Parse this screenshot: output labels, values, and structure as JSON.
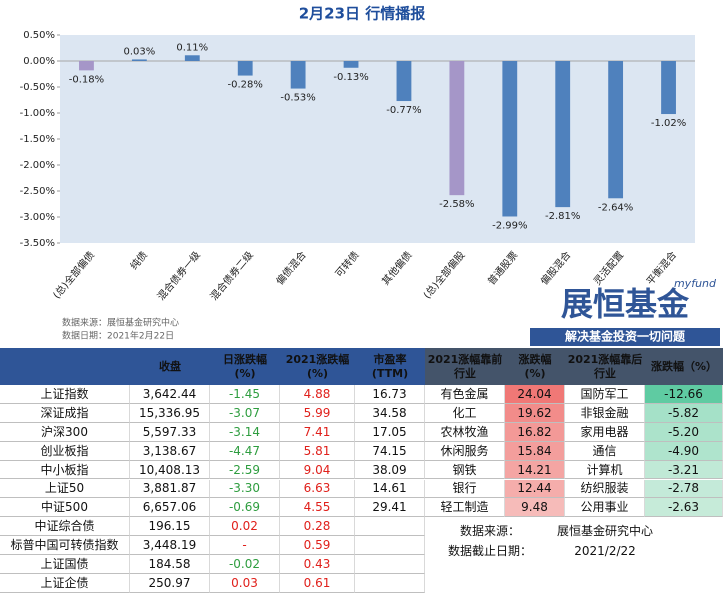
{
  "chart_data": {
    "type": "bar",
    "title": "2月23日  行情播报",
    "categories": [
      "(总)全部偏债",
      "纯债",
      "混合债券一级",
      "混合债券二级",
      "偏债混合",
      "可转债",
      "其他偏债",
      "(总)全部偏股",
      "普通股票",
      "偏股混合",
      "灵活配置",
      "平衡混合"
    ],
    "values": [
      -0.18,
      0.03,
      0.11,
      -0.28,
      -0.53,
      -0.13,
      -0.77,
      -2.58,
      -2.99,
      -2.81,
      -2.64,
      -1.02
    ],
    "value_labels": [
      "-0.18%",
      "0.03%",
      "0.11%",
      "-0.28%",
      "-0.53%",
      "-0.13%",
      "-0.77%",
      "-2.58%",
      "-2.99%",
      "-2.81%",
      "-2.64%",
      "-1.02%"
    ],
    "colors": [
      "#a596c8",
      "#4f81bd",
      "#4f81bd",
      "#4f81bd",
      "#4f81bd",
      "#4f81bd",
      "#4f81bd",
      "#a596c8",
      "#4f81bd",
      "#4f81bd",
      "#4f81bd",
      "#4f81bd"
    ],
    "ylim": [
      -3.5,
      0.5
    ],
    "yticks": [
      {
        "value": 0.5,
        "label": "0.50%"
      },
      {
        "value": 0,
        "label": "0.00%"
      },
      {
        "value": -0.5,
        "label": "-0.50%"
      },
      {
        "value": -1,
        "label": "-1.00%"
      },
      {
        "value": -1.5,
        "label": "-1.50%"
      },
      {
        "value": -2,
        "label": "-2.00%"
      },
      {
        "value": -2.5,
        "label": "-2.50%"
      },
      {
        "value": -3,
        "label": "-3.00%"
      },
      {
        "value": -3.5,
        "label": "-3.50%"
      }
    ]
  },
  "chart_notes": [
    "数据来源：展恒基金研究中心",
    "数据日期：2021年2月22日"
  ],
  "logo": {
    "brand": "myfund",
    "name": "展恒基金",
    "slogan": "解决基金投资一切问题"
  },
  "index_table": {
    "header": [
      [
        "收盘"
      ],
      [
        "日涨跌幅",
        "(%)"
      ],
      [
        "2021涨跌幅",
        "(%)"
      ],
      [
        "市盈率",
        "(TTM)"
      ]
    ],
    "rows": [
      [
        "上证指数",
        "3,642.44",
        "-1.45",
        "4.88",
        "16.73"
      ],
      [
        "深证成指",
        "15,336.95",
        "-3.07",
        "5.99",
        "34.58"
      ],
      [
        "沪深300",
        "5,597.33",
        "-3.14",
        "7.41",
        "17.05"
      ],
      [
        "创业板指",
        "3,138.67",
        "-4.47",
        "5.81",
        "74.15"
      ],
      [
        "中小板指",
        "10,408.13",
        "-2.59",
        "9.04",
        "38.09"
      ],
      [
        "上证50",
        "3,881.87",
        "-3.30",
        "6.63",
        "14.61"
      ],
      [
        "中证500",
        "6,657.06",
        "-0.69",
        "4.55",
        "29.41"
      ],
      [
        "中证综合债",
        "196.15",
        "0.02",
        "0.28"
      ],
      [
        "标普中国可转债指数",
        "3,448.19",
        "-",
        "0.59"
      ],
      [
        "上证国债",
        "184.58",
        "-0.02",
        "0.43"
      ],
      [
        "上证企债",
        "250.97",
        "0.03",
        "0.61"
      ]
    ]
  },
  "industry_table": {
    "header": [
      [
        "2021涨幅靠前",
        "行业"
      ],
      [
        "涨跌幅",
        "(%)"
      ],
      [
        "2021涨幅靠后",
        "行业"
      ],
      [
        "涨跌幅（%）"
      ]
    ],
    "rows": [
      [
        "有色金属",
        "24.04",
        "国防军工",
        "-12.66"
      ],
      [
        "化工",
        "19.62",
        "非银金融",
        "-5.82"
      ],
      [
        "农林牧渔",
        "16.82",
        "家用电器",
        "-5.20"
      ],
      [
        "休闲服务",
        "15.84",
        "通信",
        "-4.90"
      ],
      [
        "钢铁",
        "14.21",
        "计算机",
        "-3.21"
      ],
      [
        "银行",
        "12.44",
        "纺织服装",
        "-2.78"
      ],
      [
        "轻工制造",
        "9.48",
        "公用事业",
        "-2.63"
      ]
    ]
  },
  "source": [
    [
      "数据来源：",
      "展恒基金研究中心"
    ],
    [
      "数据截止日期：",
      "2021/2/22"
    ]
  ]
}
